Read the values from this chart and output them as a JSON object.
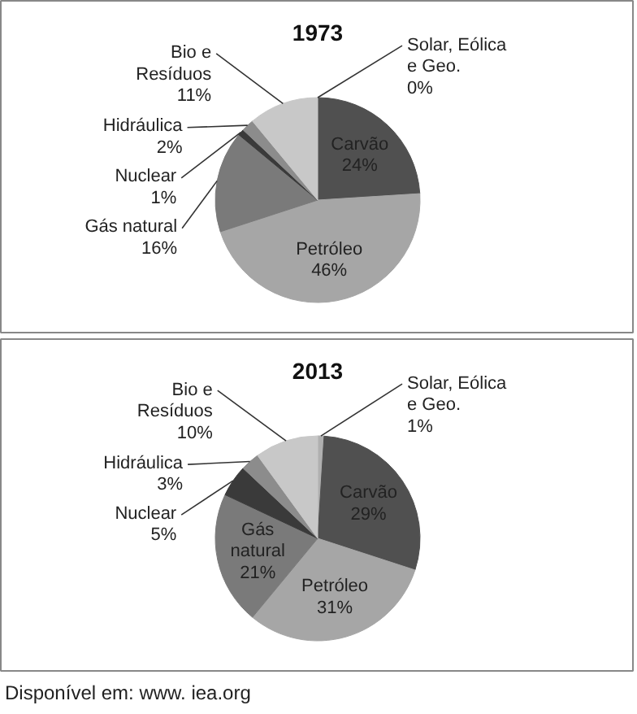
{
  "chart_data": [
    {
      "type": "pie",
      "title": "1973",
      "categories": [
        "Solar, Eólica e Geo.",
        "Carvão",
        "Petróleo",
        "Gás natural",
        "Nuclear",
        "Hidráulica",
        "Bio e Resíduos"
      ],
      "values": [
        0,
        24,
        46,
        16,
        1,
        2,
        11
      ],
      "value_labels": [
        "0%",
        "24%",
        "46%",
        "16%",
        "1%",
        "2%",
        "11%"
      ],
      "colors": [
        "#b0b0b0",
        "#505050",
        "#a6a6a6",
        "#7a7a7a",
        "#3a3a3a",
        "#8c8c8c",
        "#c8c8c8"
      ]
    },
    {
      "type": "pie",
      "title": "2013",
      "categories": [
        "Solar, Eólica e Geo.",
        "Carvão",
        "Petróleo",
        "Gás natural",
        "Nuclear",
        "Hidráulica",
        "Bio e Resíduos"
      ],
      "values": [
        1,
        29,
        31,
        21,
        5,
        3,
        10
      ],
      "value_labels": [
        "1%",
        "29%",
        "31%",
        "21%",
        "5%",
        "3%",
        "10%"
      ],
      "colors": [
        "#b0b0b0",
        "#505050",
        "#a6a6a6",
        "#7a7a7a",
        "#3a3a3a",
        "#8c8c8c",
        "#c8c8c8"
      ],
      "annotations": [
        "Disponível em: www. iea.org"
      ]
    }
  ]
}
